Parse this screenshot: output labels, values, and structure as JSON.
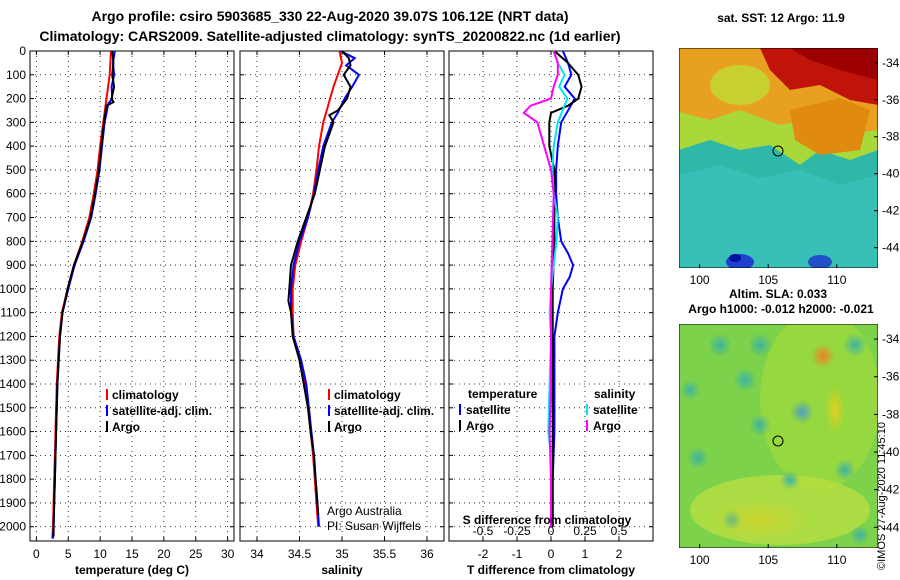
{
  "header": {
    "title_line1": "Argo profile: csiro 5903685_330 22-Aug-2020 39.07S 106.12E (NRT data)",
    "title_line2": "Climatology: CARS2009. Satellite-adjusted climatology: synTS_20200822.nc (1d earlier)"
  },
  "colors": {
    "climatology": "#ff0000",
    "satellite": "#0000ff",
    "argo": "#000000",
    "sal_satellite": "#00e5ee",
    "sal_argo": "#ff00ff"
  },
  "depth_ticks": [
    "0",
    "100",
    "200",
    "300",
    "400",
    "500",
    "600",
    "700",
    "800",
    "900",
    "1000",
    "1100",
    "1200",
    "1300",
    "1400",
    "1500",
    "1600",
    "1700",
    "1800",
    "1900",
    "2000"
  ],
  "chart_data": [
    {
      "type": "line",
      "id": "temperature",
      "xlabel": "temperature (deg C)",
      "ylabel": "depth",
      "xlim": [
        -1,
        31
      ],
      "ylim": [
        2060,
        0
      ],
      "xticks": [
        0,
        5,
        10,
        15,
        20,
        25,
        30
      ],
      "xtick_labels": [
        "0",
        "5",
        "10",
        "15",
        "20",
        "25",
        "30"
      ],
      "legend": [
        "climatology",
        "satellite-adj. clim.",
        "Argo"
      ],
      "series": [
        {
          "name": "climatology",
          "depth": [
            0,
            100,
            200,
            300,
            400,
            500,
            600,
            700,
            800,
            900,
            1000,
            1100,
            1200,
            1300,
            1400,
            1500,
            1600,
            1700,
            1800,
            1900,
            2000,
            2050
          ],
          "values": [
            11.7,
            11.5,
            11.0,
            10.5,
            10.0,
            9.6,
            9.0,
            8.3,
            7.2,
            5.9,
            4.9,
            4.0,
            3.6,
            3.4,
            3.2,
            3.1,
            3.0,
            2.9,
            2.8,
            2.7,
            2.6,
            2.5
          ]
        },
        {
          "name": "satellite-adj. clim.",
          "depth": [
            0,
            50,
            100,
            150,
            200,
            220,
            300,
            400,
            500,
            600,
            700,
            800,
            900,
            1000,
            1100,
            1200,
            1300,
            1400,
            1500,
            1600,
            1700,
            1800,
            1900,
            2000,
            2050
          ],
          "values": [
            12.3,
            12.0,
            12.2,
            11.8,
            11.9,
            11.3,
            10.7,
            10.3,
            9.9,
            9.3,
            8.6,
            7.4,
            6.0,
            5.0,
            4.1,
            3.7,
            3.5,
            3.3,
            3.2,
            3.1,
            3.0,
            2.9,
            2.8,
            2.7,
            2.6
          ]
        },
        {
          "name": "Argo",
          "depth": [
            0,
            50,
            100,
            150,
            200,
            215,
            230,
            300,
            400,
            500,
            600,
            700,
            800,
            900,
            1000,
            1100,
            1200,
            1300,
            1400,
            1500,
            1600,
            1700,
            1800,
            1900,
            2000,
            2040
          ],
          "values": [
            11.9,
            12.1,
            11.9,
            12.2,
            11.8,
            12.1,
            11.0,
            10.6,
            10.2,
            9.8,
            9.2,
            8.5,
            7.3,
            5.9,
            4.9,
            4.1,
            3.7,
            3.5,
            3.3,
            3.2,
            3.1,
            3.0,
            2.9,
            2.8,
            2.7,
            2.7
          ]
        }
      ]
    },
    {
      "type": "line",
      "id": "salinity",
      "xlabel": "salinity",
      "xlim": [
        33.8,
        36.2
      ],
      "ylim": [
        2060,
        0
      ],
      "xticks": [
        34,
        34.5,
        35,
        35.5,
        36
      ],
      "xtick_labels": [
        "34",
        "34.5",
        "35",
        "35.5",
        "36"
      ],
      "legend": [
        "climatology",
        "satellite-adj. clim.",
        "Argo"
      ],
      "annotation_1": "Argo Australia",
      "annotation_2": "PI: Susan Wijffels",
      "series": [
        {
          "name": "climatology",
          "depth": [
            0,
            50,
            100,
            150,
            200,
            250,
            300,
            400,
            500,
            600,
            700,
            800,
            900,
            1000,
            1100,
            1200,
            1300,
            1400,
            1500,
            1600,
            1700,
            1800,
            1900,
            2000
          ],
          "values": [
            34.97,
            35.0,
            34.95,
            34.9,
            34.86,
            34.82,
            34.78,
            34.73,
            34.7,
            34.66,
            34.6,
            34.52,
            34.45,
            34.42,
            34.42,
            34.43,
            34.5,
            34.56,
            34.6,
            34.63,
            34.66,
            34.68,
            34.7,
            34.72
          ]
        },
        {
          "name": "satellite-adj. clim.",
          "depth": [
            0,
            30,
            60,
            100,
            150,
            200,
            260,
            300,
            400,
            500,
            600,
            700,
            800,
            900,
            1000,
            1100,
            1200,
            1300,
            1400,
            1500,
            1600,
            1700,
            1800,
            1900,
            2000
          ],
          "values": [
            34.98,
            35.15,
            35.05,
            35.2,
            35.12,
            35.03,
            34.95,
            34.88,
            34.78,
            34.72,
            34.67,
            34.6,
            34.5,
            34.43,
            34.4,
            34.4,
            34.43,
            34.52,
            34.58,
            34.61,
            34.64,
            34.67,
            34.69,
            34.71,
            34.73
          ]
        },
        {
          "name": "Argo",
          "depth": [
            0,
            30,
            60,
            100,
            150,
            200,
            250,
            270,
            300,
            400,
            500,
            600,
            700,
            800,
            900,
            1000,
            1050,
            1100,
            1200,
            1300,
            1400,
            1500,
            1600,
            1700,
            1800,
            1900,
            1950
          ],
          "values": [
            35.0,
            35.08,
            35.1,
            35.02,
            35.1,
            35.06,
            34.95,
            34.85,
            34.9,
            34.8,
            34.74,
            34.68,
            34.58,
            34.48,
            34.4,
            34.38,
            34.37,
            34.4,
            34.42,
            34.5,
            34.55,
            34.6,
            34.63,
            34.67,
            34.69,
            34.71,
            34.72
          ]
        }
      ]
    },
    {
      "type": "line",
      "id": "differences",
      "xlabel": "T difference from climatology",
      "xlabel_top": "S difference from climatology",
      "xlim": [
        -3,
        3
      ],
      "ylim": [
        2060,
        0
      ],
      "xticks": [
        -2,
        -1,
        0,
        1,
        2
      ],
      "xtick_labels": [
        "-2",
        "-1",
        "0",
        "1",
        "2"
      ],
      "sal_xlim": [
        -0.75,
        0.75
      ],
      "sal_xticks": [
        -0.5,
        -0.25,
        0,
        0.25,
        0.5
      ],
      "sal_xtick_labels": [
        "-0.5",
        "-0.25",
        "0",
        "0.25",
        "0.5"
      ],
      "legend_temperature_title": "temperature",
      "legend_salinity_title": "salinity",
      "legend": [
        "satellite",
        "Argo",
        "satellite",
        "Argo"
      ],
      "series": [
        {
          "name": "T satellite",
          "depth": [
            0,
            50,
            100,
            150,
            200,
            300,
            400,
            500,
            600,
            700,
            800,
            850,
            900,
            950,
            1000,
            1100,
            1200,
            1400,
            1600,
            1800,
            2000
          ],
          "values": [
            0.35,
            0.5,
            0.6,
            0.4,
            0.7,
            0.3,
            0.2,
            0.15,
            0.15,
            0.2,
            0.3,
            0.5,
            0.65,
            0.55,
            0.35,
            0.2,
            0.1,
            0.1,
            0.1,
            0.05,
            0.05
          ]
        },
        {
          "name": "T Argo",
          "depth": [
            0,
            50,
            100,
            150,
            200,
            230,
            260,
            300,
            400,
            500,
            600,
            700,
            800,
            1000,
            1200,
            1400,
            1600,
            1800,
            2000
          ],
          "values": [
            0.1,
            0.5,
            0.8,
            0.9,
            0.8,
            0.5,
            0.0,
            -0.05,
            -0.05,
            0.1,
            0.1,
            0.1,
            0.1,
            0.05,
            0.05,
            0.05,
            0.05,
            0.05,
            0.05
          ]
        },
        {
          "name": "S satellite",
          "depth": [
            0,
            50,
            100,
            150,
            200,
            300,
            400,
            500,
            600,
            700,
            800,
            900,
            1000,
            1100,
            1200,
            1400,
            1600,
            1700,
            1800,
            2000
          ],
          "values": [
            0.02,
            0.05,
            0.1,
            0.06,
            0.12,
            0.05,
            0.02,
            0.01,
            0.02,
            0.05,
            0.04,
            0.02,
            0.0,
            -0.01,
            0.0,
            -0.01,
            -0.02,
            0.0,
            0.0,
            0.0
          ]
        },
        {
          "name": "S Argo",
          "depth": [
            0,
            50,
            100,
            150,
            200,
            230,
            260,
            300,
            400,
            500,
            600,
            800,
            1000,
            1200,
            1400,
            1600,
            1800,
            2000
          ],
          "values": [
            0.02,
            0.05,
            0.05,
            0.02,
            0.0,
            -0.15,
            -0.2,
            -0.1,
            -0.05,
            0.0,
            0.02,
            0.01,
            0.0,
            0.0,
            0.0,
            -0.01,
            0.0,
            0.0
          ]
        }
      ]
    },
    {
      "type": "heatmap",
      "id": "sst_map",
      "title": "sat. SST: 12 Argo: 11.9",
      "xticks": [
        100,
        105,
        110
      ],
      "yticks": [
        -34,
        -36,
        -38,
        -40,
        -42,
        -44
      ],
      "float_position": [
        106.12,
        -39.07
      ]
    },
    {
      "type": "heatmap",
      "id": "sla_map",
      "title_line1": "Altim. SLA: 0.033",
      "title_line2": "Argo h1000: -0.012 h2000: -0.021",
      "xticks": [
        100,
        105,
        110
      ],
      "yticks": [
        -34,
        -36,
        -38,
        -40,
        -42,
        -44
      ],
      "float_position": [
        106.12,
        -39.07
      ]
    }
  ],
  "footer": {
    "stamp": "©IMOS 27-Aug-2020 11:45:10"
  }
}
